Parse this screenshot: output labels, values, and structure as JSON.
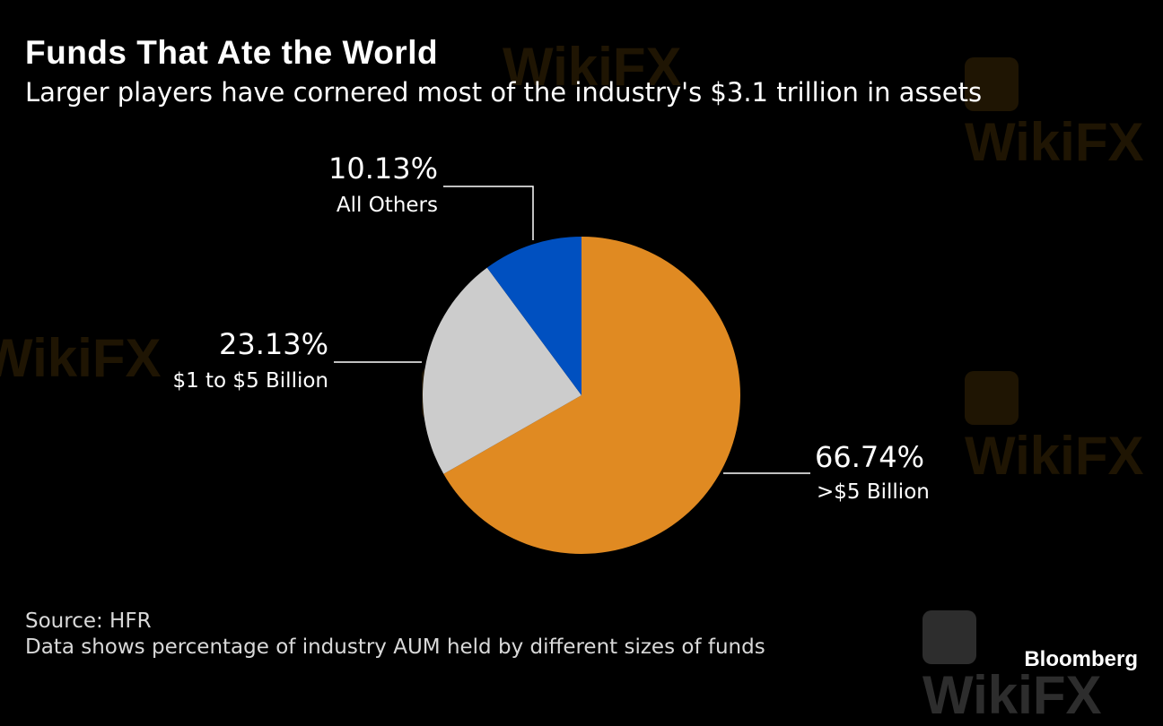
{
  "header": {
    "title": "Funds That Ate the World",
    "subtitle": "Larger players have cornered most of the industry's $3.1 trillion in assets"
  },
  "chart_data": {
    "type": "pie",
    "slices": [
      {
        "label": ">$5 Billion",
        "value": 66.74,
        "display": "66.74%",
        "color": "#e08a22"
      },
      {
        "label": "$1 to $5 Billion",
        "value": 23.13,
        "display": "23.13%",
        "color": "#cccccc"
      },
      {
        "label": "All Others",
        "value": 10.13,
        "display": "10.13%",
        "color": "#0050c0"
      }
    ]
  },
  "footer": {
    "source": "Source: HFR",
    "note": "Data shows percentage of industry AUM held by different sizes of funds",
    "brand": "Bloomberg"
  },
  "watermark": {
    "text": "WikiFX"
  }
}
